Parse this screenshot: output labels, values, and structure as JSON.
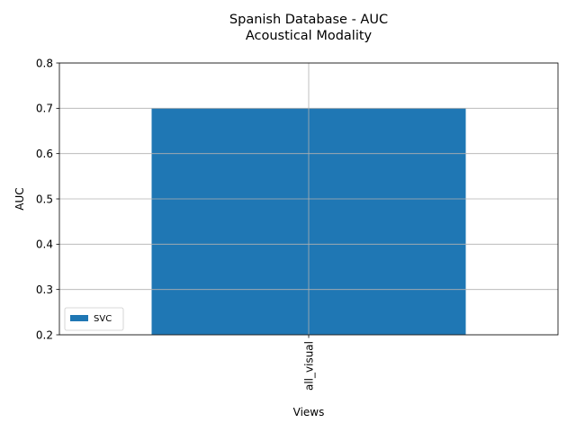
{
  "chart_data": {
    "type": "bar",
    "title": "Spanish Database - AUC",
    "subtitle": "Acoustical Modality",
    "xlabel": "Views",
    "ylabel": "AUC",
    "categories": [
      "all_visual"
    ],
    "series": [
      {
        "name": "SVC",
        "values": [
          0.7
        ],
        "color": "#1f77b4"
      }
    ],
    "ylim": [
      0.2,
      0.8
    ],
    "yticks": [
      "0.2",
      "0.3",
      "0.4",
      "0.5",
      "0.6",
      "0.7",
      "0.8"
    ],
    "grid": true,
    "legend_position": "lower-left"
  }
}
